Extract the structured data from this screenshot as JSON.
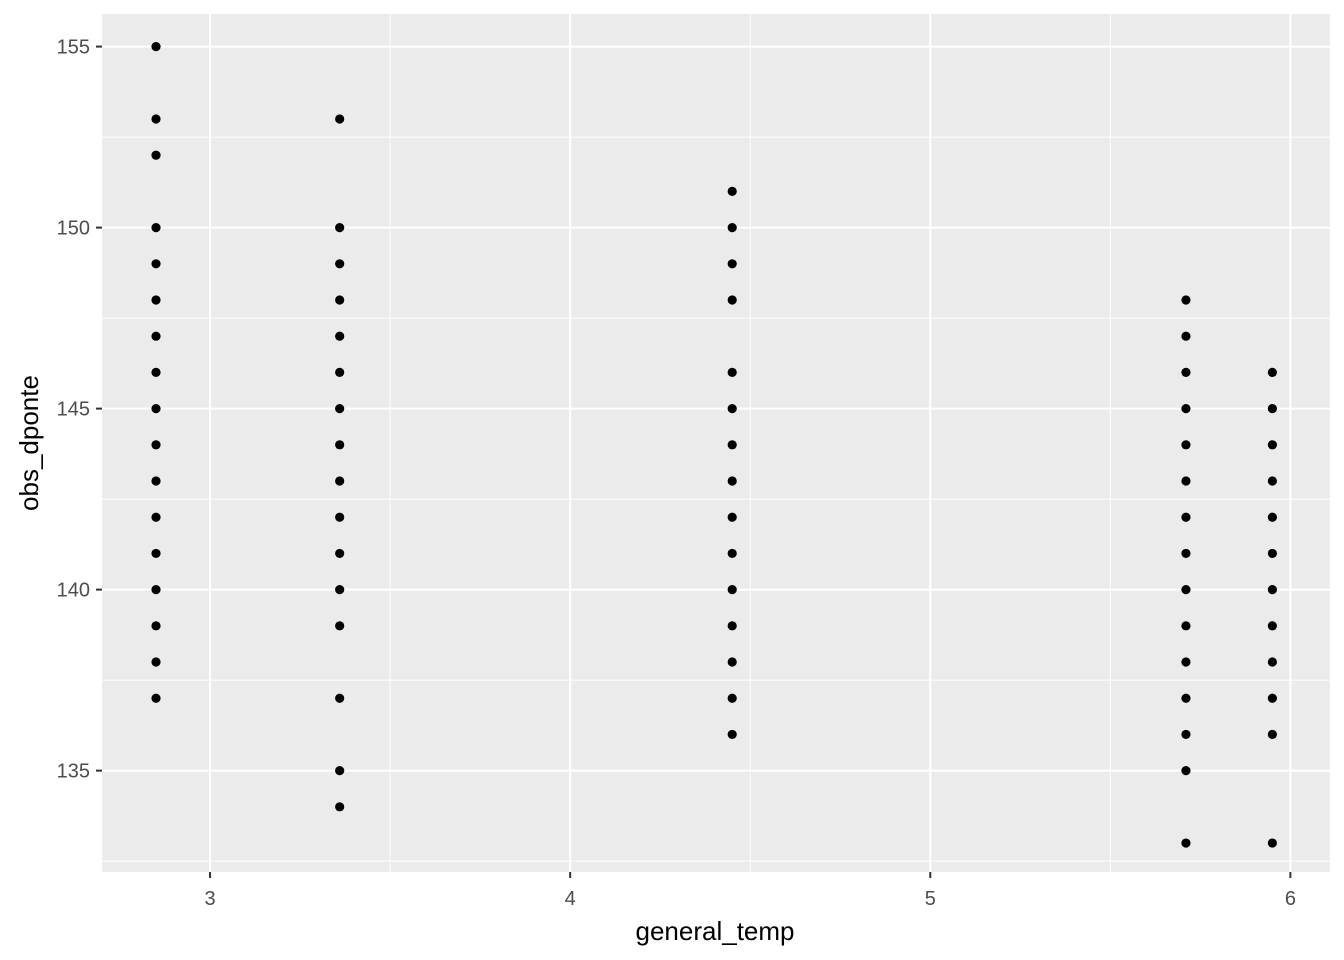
{
  "chart_data": {
    "type": "scatter",
    "xlabel": "general_temp",
    "ylabel": "obs_dponte",
    "xlim": [
      2.7,
      6.11
    ],
    "ylim": [
      132.2,
      155.9
    ],
    "x_ticks": [
      3,
      4,
      5,
      6
    ],
    "y_ticks": [
      135,
      140,
      145,
      150,
      155
    ],
    "x_tick_labels": [
      "3",
      "4",
      "5",
      "6"
    ],
    "y_tick_labels": [
      "135",
      "140",
      "145",
      "150",
      "155"
    ],
    "grid": true,
    "legend": "none",
    "panel_color": "#ebebeb",
    "point_color": "#000000",
    "series": [
      {
        "points": [
          [
            2.85,
            155
          ],
          [
            2.85,
            153
          ],
          [
            2.85,
            152
          ],
          [
            2.85,
            150
          ],
          [
            2.85,
            149
          ],
          [
            2.85,
            148
          ],
          [
            2.85,
            147
          ],
          [
            2.85,
            146
          ],
          [
            2.85,
            145
          ],
          [
            2.85,
            144
          ],
          [
            2.85,
            143
          ],
          [
            2.85,
            142
          ],
          [
            2.85,
            141
          ],
          [
            2.85,
            140
          ],
          [
            2.85,
            139
          ],
          [
            2.85,
            138
          ],
          [
            2.85,
            137
          ],
          [
            3.36,
            153
          ],
          [
            3.36,
            150
          ],
          [
            3.36,
            149
          ],
          [
            3.36,
            148
          ],
          [
            3.36,
            147
          ],
          [
            3.36,
            146
          ],
          [
            3.36,
            145
          ],
          [
            3.36,
            144
          ],
          [
            3.36,
            143
          ],
          [
            3.36,
            142
          ],
          [
            3.36,
            141
          ],
          [
            3.36,
            140
          ],
          [
            3.36,
            139
          ],
          [
            3.36,
            137
          ],
          [
            3.36,
            135
          ],
          [
            3.36,
            134
          ],
          [
            4.45,
            151
          ],
          [
            4.45,
            150
          ],
          [
            4.45,
            149
          ],
          [
            4.45,
            148
          ],
          [
            4.45,
            146
          ],
          [
            4.45,
            145
          ],
          [
            4.45,
            144
          ],
          [
            4.45,
            143
          ],
          [
            4.45,
            142
          ],
          [
            4.45,
            141
          ],
          [
            4.45,
            140
          ],
          [
            4.45,
            139
          ],
          [
            4.45,
            138
          ],
          [
            4.45,
            137
          ],
          [
            4.45,
            136
          ],
          [
            5.71,
            148
          ],
          [
            5.71,
            147
          ],
          [
            5.71,
            146
          ],
          [
            5.71,
            145
          ],
          [
            5.71,
            144
          ],
          [
            5.71,
            143
          ],
          [
            5.71,
            142
          ],
          [
            5.71,
            141
          ],
          [
            5.71,
            140
          ],
          [
            5.71,
            139
          ],
          [
            5.71,
            138
          ],
          [
            5.71,
            137
          ],
          [
            5.71,
            136
          ],
          [
            5.71,
            135
          ],
          [
            5.71,
            133
          ],
          [
            5.95,
            146
          ],
          [
            5.95,
            145
          ],
          [
            5.95,
            144
          ],
          [
            5.95,
            143
          ],
          [
            5.95,
            142
          ],
          [
            5.95,
            141
          ],
          [
            5.95,
            140
          ],
          [
            5.95,
            139
          ],
          [
            5.95,
            138
          ],
          [
            5.95,
            137
          ],
          [
            5.95,
            136
          ],
          [
            5.95,
            133
          ]
        ]
      }
    ]
  }
}
